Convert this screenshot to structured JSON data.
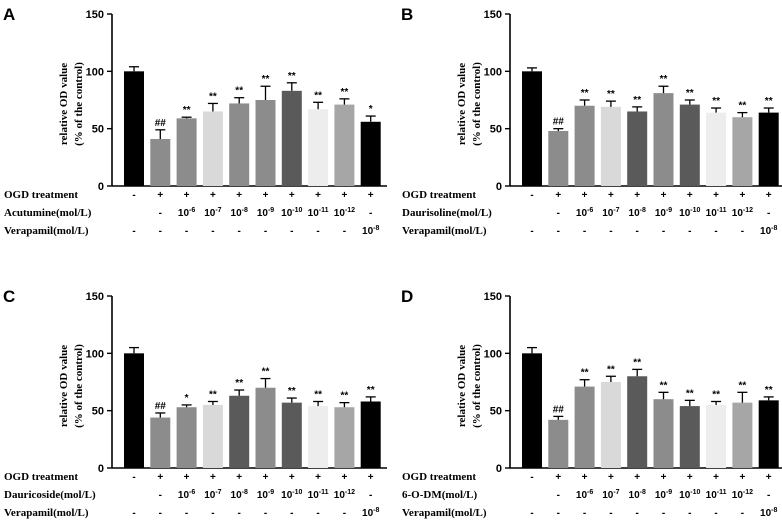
{
  "chart_data": [
    {
      "panel": "A",
      "type": "bar",
      "ylabel": [
        "relative OD value",
        "(% of the control)"
      ],
      "ylim": [
        0,
        150
      ],
      "yticks": [
        "0",
        "50",
        "100",
        "150"
      ],
      "values": [
        100,
        41,
        59,
        65,
        72,
        75,
        83,
        67,
        71,
        56
      ],
      "errors": [
        4,
        8,
        1,
        7,
        5,
        12,
        7,
        6,
        5,
        5
      ],
      "bar_colors": [
        "#000000",
        "#8c8c8c",
        "#8c8c8c",
        "#d9d9d9",
        "#8c8c8c",
        "#8c8c8c",
        "#5a5a5a",
        "#ededed",
        "#a6a6a6",
        "#000000"
      ],
      "significance": [
        "",
        "##",
        "**",
        "**",
        "**",
        "**",
        "**",
        "**",
        "**",
        "*"
      ],
      "rows": [
        {
          "label": "OGD treatment",
          "cells": [
            "-",
            "+",
            "+",
            "+",
            "+",
            "+",
            "+",
            "+",
            "+",
            "+"
          ]
        },
        {
          "label": "Acutumine(mol/L)",
          "cells": [
            "",
            "-",
            "10⁻⁶",
            "10⁻⁷",
            "10⁻⁸",
            "10⁻⁹",
            "10⁻¹⁰",
            "10⁻¹¹",
            "10⁻¹²",
            "-"
          ]
        },
        {
          "label": "Verapamil(mol/L)",
          "cells": [
            "-",
            "-",
            "-",
            "-",
            "-",
            "-",
            "-",
            "-",
            "-",
            "10⁻⁸"
          ]
        }
      ]
    },
    {
      "panel": "B",
      "type": "bar",
      "ylabel": [
        "relative OD value",
        "(% of the control)"
      ],
      "ylim": [
        0,
        150
      ],
      "yticks": [
        "0",
        "50",
        "100",
        "150"
      ],
      "values": [
        100,
        48,
        70,
        69,
        65,
        81,
        71,
        64,
        60,
        64
      ],
      "errors": [
        3,
        2,
        5,
        5,
        4,
        6,
        4,
        4,
        4,
        4
      ],
      "bar_colors": [
        "#000000",
        "#8c8c8c",
        "#8c8c8c",
        "#d9d9d9",
        "#5a5a5a",
        "#8c8c8c",
        "#5a5a5a",
        "#ededed",
        "#a6a6a6",
        "#000000"
      ],
      "significance": [
        "",
        "##",
        "**",
        "**",
        "**",
        "**",
        "**",
        "**",
        "**",
        "**"
      ],
      "rows": [
        {
          "label": "OGD treatment",
          "cells": [
            "-",
            "+",
            "+",
            "+",
            "+",
            "+",
            "+",
            "+",
            "+",
            "+"
          ]
        },
        {
          "label": "Daurisoline(mol/L)",
          "cells": [
            "",
            "-",
            "10⁻⁶",
            "10⁻⁷",
            "10⁻⁸",
            "10⁻⁹",
            "10⁻¹⁰",
            "10⁻¹¹",
            "10⁻¹²",
            "-"
          ]
        },
        {
          "label": "Verapamil(mol/L)",
          "cells": [
            "-",
            "-",
            "-",
            "-",
            "-",
            "-",
            "-",
            "-",
            "-",
            "10⁻⁸"
          ]
        }
      ]
    },
    {
      "panel": "C",
      "type": "bar",
      "ylabel": [
        "relative OD value",
        "(% of the control)"
      ],
      "ylim": [
        0,
        150
      ],
      "yticks": [
        "0",
        "50",
        "100",
        "150"
      ],
      "values": [
        100,
        44,
        53,
        55,
        63,
        70,
        57,
        54,
        53,
        58
      ],
      "errors": [
        5,
        4,
        2,
        3,
        5,
        8,
        4,
        4,
        4,
        4
      ],
      "bar_colors": [
        "#000000",
        "#8c8c8c",
        "#8c8c8c",
        "#d9d9d9",
        "#5a5a5a",
        "#8c8c8c",
        "#5a5a5a",
        "#ededed",
        "#a6a6a6",
        "#000000"
      ],
      "significance": [
        "",
        "##",
        "*",
        "**",
        "**",
        "**",
        "**",
        "**",
        "**",
        "**"
      ],
      "rows": [
        {
          "label": "OGD treatment",
          "cells": [
            "-",
            "+",
            "+",
            "+",
            "+",
            "+",
            "+",
            "+",
            "+",
            "+"
          ]
        },
        {
          "label": "Dauricoside(mol/L)",
          "cells": [
            "",
            "-",
            "10⁻⁶",
            "10⁻⁷",
            "10⁻⁸",
            "10⁻⁹",
            "10⁻¹⁰",
            "10⁻¹¹",
            "10⁻¹²",
            "-"
          ]
        },
        {
          "label": "Verapamil(mol/L)",
          "cells": [
            "-",
            "-",
            "-",
            "-",
            "-",
            "-",
            "-",
            "-",
            "-",
            "10⁻⁸"
          ]
        }
      ]
    },
    {
      "panel": "D",
      "type": "bar",
      "ylabel": [
        "relative OD value",
        "(% of the control)"
      ],
      "ylim": [
        0,
        150
      ],
      "yticks": [
        "0",
        "50",
        "100",
        "150"
      ],
      "values": [
        100,
        42,
        71,
        75,
        80,
        60,
        54,
        55,
        57,
        59
      ],
      "errors": [
        5,
        3,
        6,
        5,
        6,
        6,
        5,
        3,
        9,
        3
      ],
      "bar_colors": [
        "#000000",
        "#8c8c8c",
        "#8c8c8c",
        "#d9d9d9",
        "#5a5a5a",
        "#8c8c8c",
        "#5a5a5a",
        "#ededed",
        "#a6a6a6",
        "#000000"
      ],
      "significance": [
        "",
        "##",
        "**",
        "**",
        "**",
        "**",
        "**",
        "**",
        "**",
        "**"
      ],
      "rows": [
        {
          "label": "OGD treatment",
          "cells": [
            "-",
            "+",
            "+",
            "+",
            "+",
            "+",
            "+",
            "+",
            "+",
            "+"
          ]
        },
        {
          "label": "6-O-DM(mol/L)",
          "cells": [
            "",
            "-",
            "10⁻⁶",
            "10⁻⁷",
            "10⁻⁸",
            "10⁻⁹",
            "10⁻¹⁰",
            "10⁻¹¹",
            "10⁻¹²",
            "-"
          ]
        },
        {
          "label": "Verapamil(mol/L)",
          "cells": [
            "-",
            "-",
            "-",
            "-",
            "-",
            "-",
            "-",
            "-",
            "-",
            "10⁻⁸"
          ]
        }
      ]
    }
  ]
}
